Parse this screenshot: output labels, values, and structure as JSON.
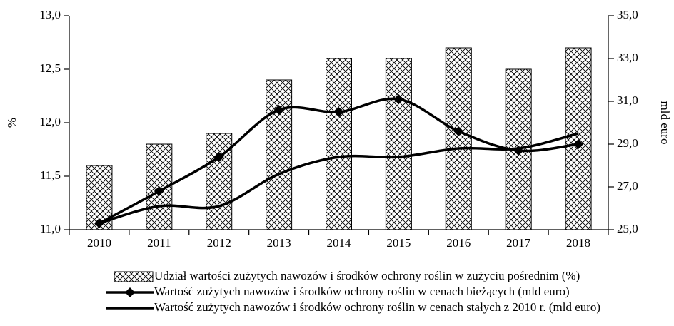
{
  "chart_data": {
    "type": "bar-line",
    "categories": [
      "2010",
      "2011",
      "2012",
      "2013",
      "2014",
      "2015",
      "2016",
      "2017",
      "2018"
    ],
    "ylabel": "%",
    "y2label": "mld euro",
    "ylim": [
      11,
      13
    ],
    "yticks": [
      {
        "value": 11,
        "label": "11,0"
      },
      {
        "value": 11.5,
        "label": "11,5"
      },
      {
        "value": 12,
        "label": "12,0"
      },
      {
        "value": 12.5,
        "label": "12,5"
      },
      {
        "value": 13,
        "label": "13,0"
      }
    ],
    "y2lim": [
      25,
      35
    ],
    "y2ticks": [
      {
        "value": 25,
        "label": "25,0"
      },
      {
        "value": 27,
        "label": "27,0"
      },
      {
        "value": 29,
        "label": "29,0"
      },
      {
        "value": 31,
        "label": "31,0"
      },
      {
        "value": 33,
        "label": "33,0"
      },
      {
        "value": 35,
        "label": "35,0"
      }
    ],
    "series": [
      {
        "name": "Udział wartości zużytych nawozów i środków ochrony roślin w zużyciu pośrednim (%)",
        "type": "bar",
        "color": "#000000",
        "values": [
          11.6,
          11.8,
          11.9,
          12.4,
          12.6,
          12.6,
          12.7,
          12.5,
          12.7
        ]
      },
      {
        "name": "Wartość zużytych nawozów i środków ochrony roślin w cenach bieżących (mld euro)",
        "type": "line",
        "marker": "diamond",
        "axis": "y2",
        "color": "#000000",
        "values": [
          25.3,
          26.8,
          28.4,
          30.6,
          30.5,
          31.1,
          29.6,
          28.7,
          29.0
        ]
      },
      {
        "name": "Wartość zużytych nawozów i środków ochrony roślin w cenach stałych z 2010 r. (mld euro)",
        "type": "line",
        "axis": "y2",
        "color": "#000000",
        "values": [
          25.3,
          26.1,
          26.1,
          27.6,
          28.4,
          28.4,
          28.8,
          28.8,
          29.5
        ]
      }
    ]
  }
}
